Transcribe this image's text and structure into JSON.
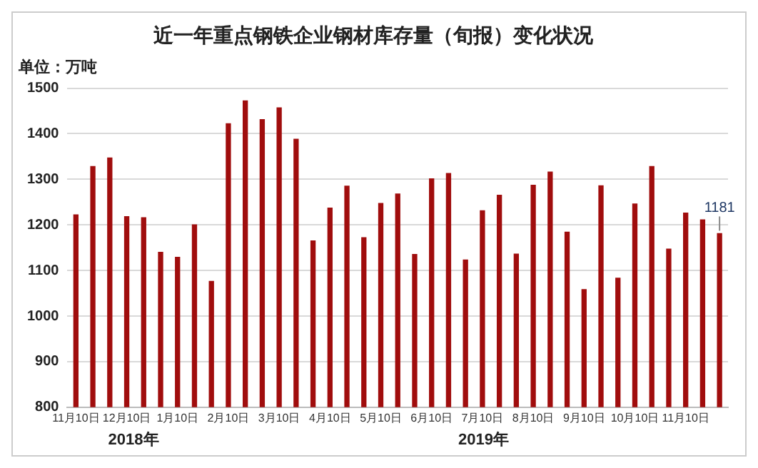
{
  "chart_data": {
    "type": "bar",
    "title": "近一年重点钢铁企业钢材库存量（旬报）变化状况",
    "ylabel": "单位：万吨",
    "categories": [
      "11月10日",
      null,
      null,
      "12月10日",
      null,
      null,
      "1月10日",
      null,
      null,
      "2月10日",
      null,
      null,
      "3月10日",
      null,
      null,
      "4月10日",
      null,
      null,
      "5月10日",
      null,
      null,
      "6月10日",
      null,
      null,
      "7月10日",
      null,
      null,
      "8月10日",
      null,
      null,
      "9月10日",
      null,
      null,
      "10月10日",
      null,
      null,
      "11月10日",
      null,
      null
    ],
    "values": [
      1222,
      1328,
      1347,
      1218,
      1216,
      1140,
      1129,
      1200,
      1076,
      1422,
      1472,
      1431,
      1457,
      1388,
      1165,
      1237,
      1285,
      1172,
      1247,
      1268,
      1135,
      1301,
      1313,
      1123,
      1231,
      1265,
      1136,
      1287,
      1316,
      1184,
      1058,
      1286,
      1083,
      1246,
      1328,
      1147,
      1226,
      1211,
      1181
    ],
    "value_labels": [
      null,
      null,
      null,
      null,
      null,
      null,
      null,
      null,
      null,
      null,
      null,
      null,
      null,
      null,
      null,
      null,
      null,
      null,
      null,
      null,
      null,
      null,
      null,
      null,
      null,
      null,
      null,
      null,
      null,
      null,
      null,
      null,
      null,
      null,
      null,
      null,
      null,
      null,
      "1181"
    ],
    "color": "#a00d0d",
    "ylim": [
      800,
      1500
    ],
    "yticks": [
      800,
      900,
      1000,
      1100,
      1200,
      1300,
      1400,
      1500
    ],
    "grid": "y",
    "annotations": [
      "2018年",
      "2019年"
    ]
  }
}
